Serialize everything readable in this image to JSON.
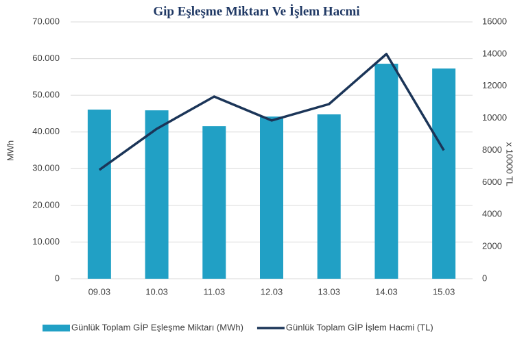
{
  "chart_data": {
    "type": "bar_line",
    "title": "Gip Eşleşme Miktarı Ve İşlem Hacmi",
    "y_label": "MWh",
    "y2_label": "x 10000 TL",
    "categories": [
      "09.03",
      "10.03",
      "11.03",
      "12.03",
      "13.03",
      "14.03",
      "15.03"
    ],
    "series": [
      {
        "name": "Günlük Toplam GİP Eşleşme Miktarı (MWh)",
        "color": "#21a0c5",
        "kind": "bar",
        "values": [
          46100,
          45900,
          41600,
          44200,
          44800,
          58600,
          57300
        ]
      },
      {
        "name": "Günlük Toplam GİP İşlem Hacmi (TL)",
        "color": "#1b3558",
        "kind": "line",
        "axis": "y2",
        "values": [
          6780,
          9340,
          11350,
          9860,
          10880,
          14000,
          8000
        ]
      }
    ],
    "ylim": [
      0,
      70000
    ],
    "yticks": [
      0,
      {
        "value": 10000,
        "label": "10.000"
      },
      {
        "value": 20000,
        "label": "20.000"
      },
      {
        "value": 30000,
        "label": "30.000"
      },
      {
        "value": 40000,
        "label": "40.000"
      },
      {
        "value": 50000,
        "label": "50.000"
      },
      {
        "value": 60000,
        "label": "60.000"
      },
      {
        "value": 70000,
        "label": "70.000"
      }
    ],
    "y2lim": [
      0,
      16000
    ],
    "y2ticks": [
      0,
      2000,
      4000,
      6000,
      8000,
      10000,
      12000,
      14000,
      16000
    ],
    "grid": true
  }
}
